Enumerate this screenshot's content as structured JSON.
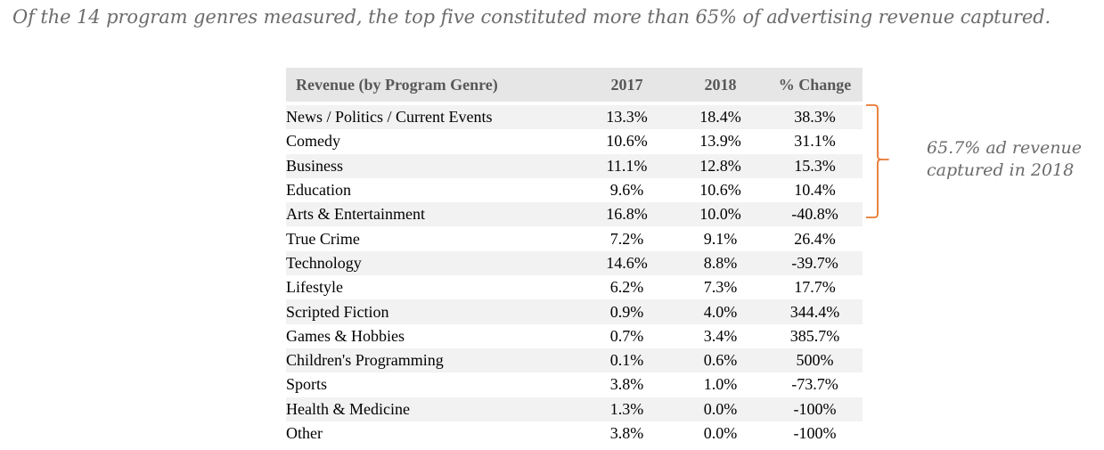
{
  "headline": "Of the 14 program genres measured, the top five constituted more than 65% of advertising revenue captured.",
  "annotation": {
    "line1": "65.7% ad revenue",
    "line2": "captured in 2018",
    "color": "#e8772e"
  },
  "chart_data": {
    "type": "table",
    "columns": [
      "Revenue (by Program Genre)",
      "2017",
      "2018",
      "% Change"
    ],
    "rows": [
      [
        "News / Politics / Current Events",
        "13.3%",
        "18.4%",
        "38.3%"
      ],
      [
        "Comedy",
        "10.6%",
        "13.9%",
        "31.1%"
      ],
      [
        "Business",
        "11.1%",
        "12.8%",
        "15.3%"
      ],
      [
        "Education",
        "9.6%",
        "10.6%",
        "10.4%"
      ],
      [
        "Arts & Entertainment",
        "16.8%",
        "10.0%",
        "-40.8%"
      ],
      [
        "True Crime",
        "7.2%",
        "9.1%",
        "26.4%"
      ],
      [
        "Technology",
        "14.6%",
        "8.8%",
        "-39.7%"
      ],
      [
        "Lifestyle",
        "6.2%",
        "7.3%",
        "17.7%"
      ],
      [
        "Scripted Fiction",
        "0.9%",
        "4.0%",
        "344.4%"
      ],
      [
        "Games & Hobbies",
        "0.7%",
        "3.4%",
        "385.7%"
      ],
      [
        "Children's Programming",
        "0.1%",
        "0.6%",
        "500%"
      ],
      [
        "Sports",
        "3.8%",
        "1.0%",
        "-73.7%"
      ],
      [
        "Health & Medicine",
        "1.3%",
        "0.0%",
        "-100%"
      ],
      [
        "Other",
        "3.8%",
        "0.0%",
        "-100%"
      ]
    ]
  }
}
